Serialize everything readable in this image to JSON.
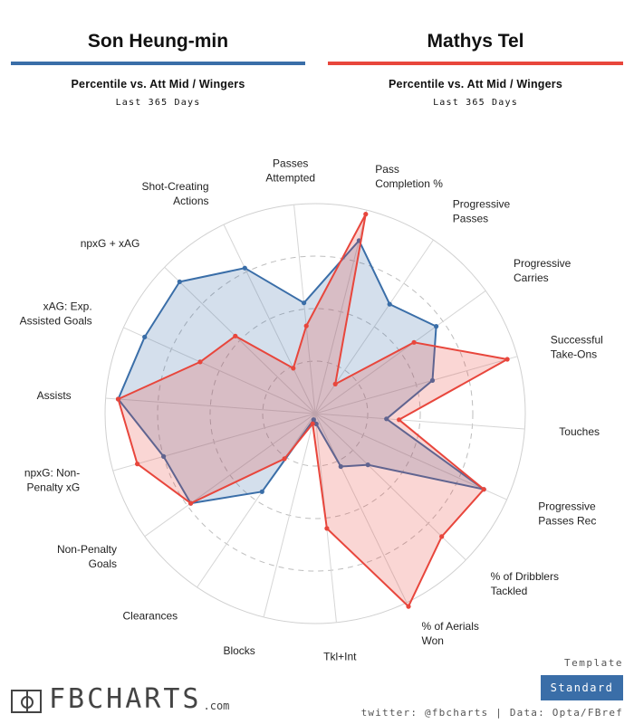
{
  "header": {
    "player1": {
      "name": "Son Heung-min",
      "subtitle": "Percentile vs. Att Mid / Wingers",
      "range": "Last 365 Days"
    },
    "player2": {
      "name": "Mathys Tel",
      "subtitle": "Percentile vs. Att Mid / Wingers",
      "range": "Last 365 Days"
    }
  },
  "colors": {
    "player1": "#3a6ea8",
    "player2": "#e8463c"
  },
  "chart_data": {
    "type": "radar",
    "title": "",
    "rlim": [
      0,
      100
    ],
    "grid": true,
    "categories": [
      [
        "Passes",
        "Attempted"
      ],
      [
        "Pass",
        "Completion %"
      ],
      [
        "Progressive",
        "Passes"
      ],
      [
        "Progressive",
        "Carries"
      ],
      [
        "Successful",
        "Take-Ons"
      ],
      [
        "Touches"
      ],
      [
        "Progressive",
        "Passes Rec"
      ],
      [
        "% of Dribblers",
        "Tackled"
      ],
      [
        "% of Aerials",
        "Won"
      ],
      [
        "Tkl+Int"
      ],
      [
        "Blocks"
      ],
      [
        "Clearances"
      ],
      [
        "Non-Penalty",
        "Goals"
      ],
      [
        "npxG: Non-",
        "Penalty xG"
      ],
      [
        "Assists"
      ],
      [
        "xAG: Exp.",
        "Assisted Goals"
      ],
      [
        "npxG + xAG"
      ],
      [
        "Shot-Creating",
        "Actions"
      ]
    ],
    "series": [
      {
        "name": "Son Heung-min",
        "values": [
          53,
          85,
          63,
          71,
          58,
          34,
          88,
          35,
          28,
          5,
          3,
          45,
          73,
          75,
          94,
          89,
          90,
          77
        ]
      },
      {
        "name": "Mathys Tel",
        "values": [
          42,
          98,
          17,
          58,
          95,
          40,
          88,
          84,
          102,
          55,
          5,
          26,
          73,
          88,
          94,
          60,
          53,
          24
        ]
      }
    ]
  },
  "footer": {
    "logo_text": "FBCHARTS",
    "logo_domain": ".com",
    "template_label": "Template",
    "template_button": "Standard",
    "credits": "twitter: @fbcharts | Data: Opta/FBref"
  }
}
